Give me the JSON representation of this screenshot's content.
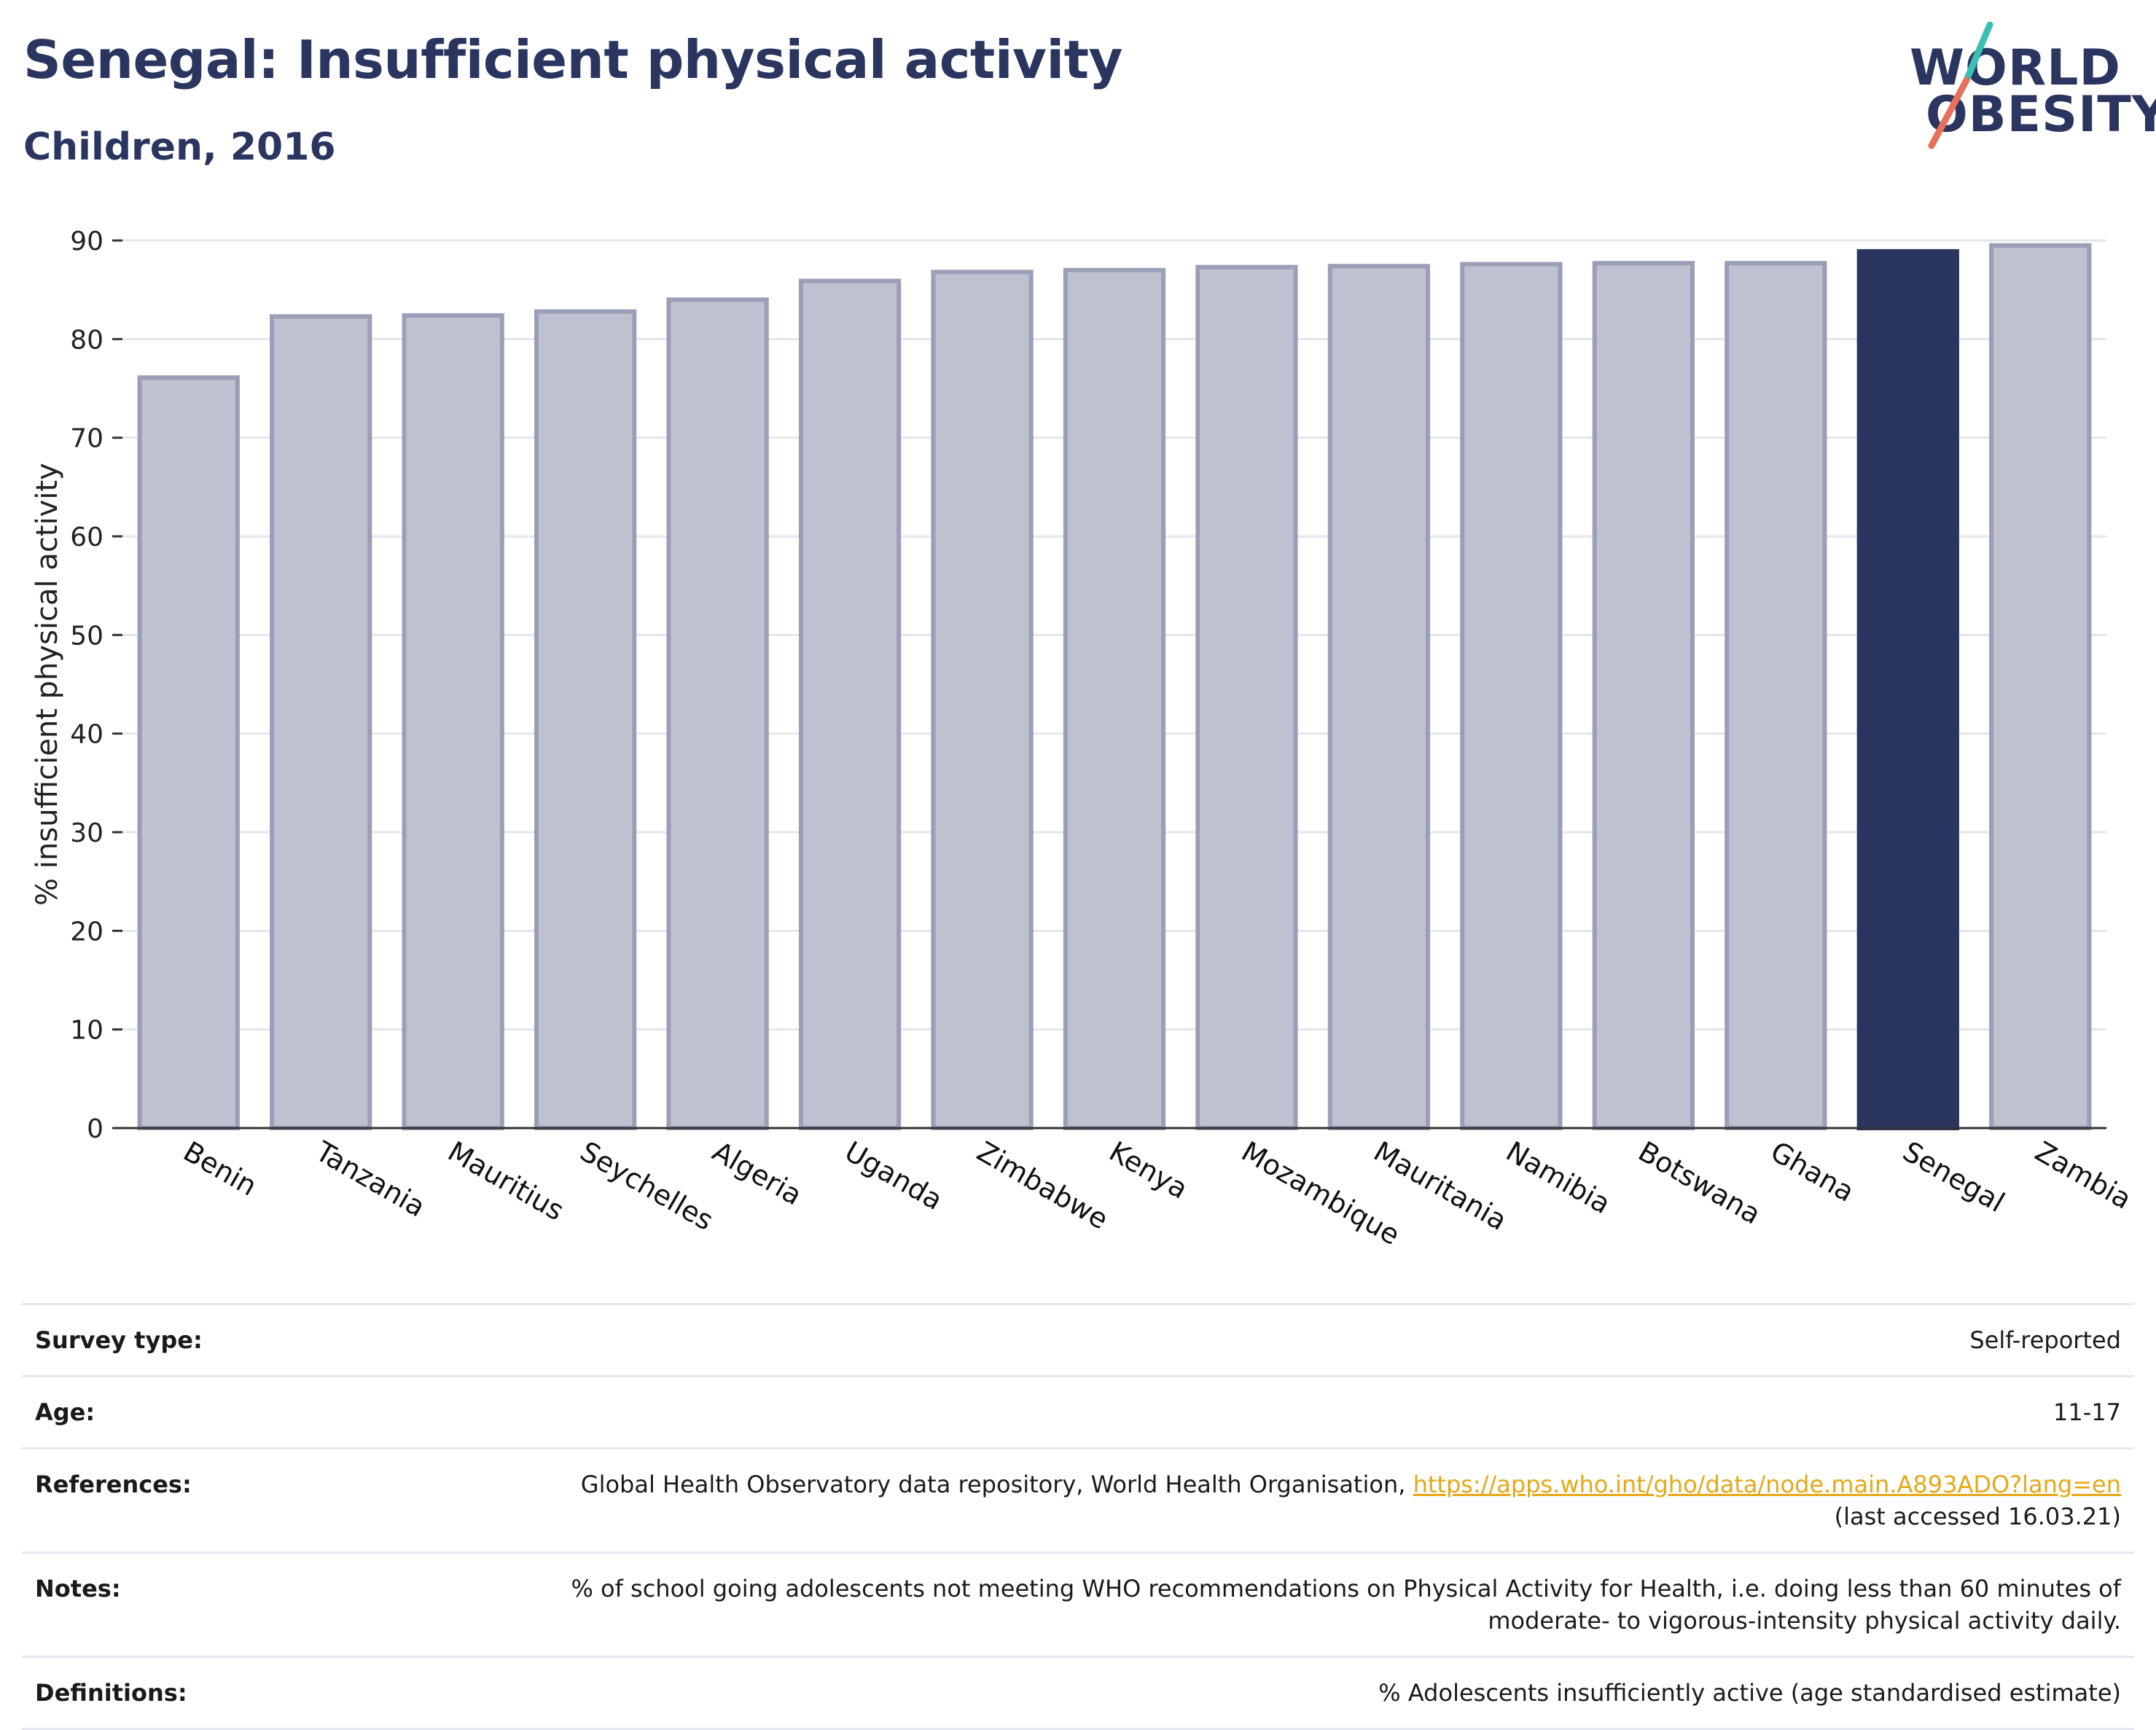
{
  "title": "Senegal: Insufficient physical activity",
  "subtitle": "Children, 2016",
  "logo": {
    "line1": "WORLD",
    "line2": "OBESITY"
  },
  "colors": {
    "bar": "#bec1cf",
    "bar_edge": "#9a9eb6",
    "highlight": "#2a3560",
    "grid": "#e4e6ec"
  },
  "chart_data": {
    "type": "bar",
    "ylabel": "% insufficient physical activity",
    "ylim": [
      0,
      90
    ],
    "yticks": [
      0,
      10,
      20,
      30,
      40,
      50,
      60,
      70,
      80,
      90
    ],
    "categories": [
      "Benin",
      "Tanzania",
      "Mauritius",
      "Seychelles",
      "Algeria",
      "Uganda",
      "Zimbabwe",
      "Kenya",
      "Mozambique",
      "Mauritania",
      "Namibia",
      "Botswana",
      "Ghana",
      "Senegal",
      "Zambia"
    ],
    "values": [
      76.1,
      82.3,
      82.4,
      82.8,
      84.0,
      85.9,
      86.8,
      87.0,
      87.3,
      87.4,
      87.6,
      87.7,
      87.7,
      88.9,
      89.5
    ],
    "highlight": "Senegal",
    "grid": true
  },
  "info": [
    {
      "label": "Survey type:",
      "value": "Self-reported"
    },
    {
      "label": "Age:",
      "value": "11-17"
    },
    {
      "label": "References:",
      "value": "Global Health Observatory data repository, World Health Organisation, ",
      "link": "https://apps.who.int/gho/data/node.main.A893ADO?lang=en",
      "value2": "(last accessed 16.03.21)"
    },
    {
      "label": "Notes:",
      "value": "% of school going adolescents not meeting WHO recommendations on Physical Activity for Health, i.e. doing less than 60 minutes of",
      "value2": "moderate- to vigorous-intensity physical activity daily."
    },
    {
      "label": "Definitions:",
      "value": "% Adolescents insufficiently active (age standardised estimate)"
    }
  ]
}
